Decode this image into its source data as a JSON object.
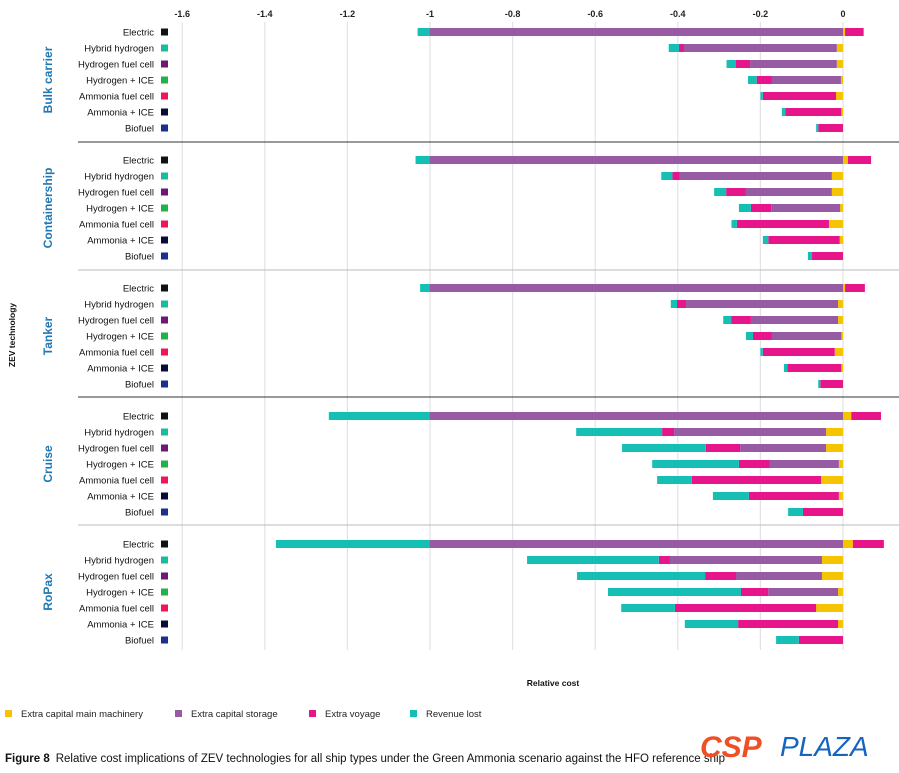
{
  "chart_data": {
    "type": "bar",
    "orientation": "horizontal",
    "stacked": true,
    "xlabel": "Relative cost",
    "ylabel": "ZEV technology",
    "xlim": [
      -1.65,
      0.1
    ],
    "xticks": [
      -1.6,
      -1.4,
      -1.2,
      -1,
      -0.8,
      -0.6,
      -0.4,
      -0.2,
      0
    ],
    "grid": "vertical",
    "legend_position": "bottom",
    "technologies": [
      {
        "name": "Electric",
        "color": "#111111"
      },
      {
        "name": "Hybrid hydrogen",
        "color": "#1abc9c"
      },
      {
        "name": "Hydrogen fuel cell",
        "color": "#6a1b7a"
      },
      {
        "name": "Hydrogen + ICE",
        "color": "#22b14c"
      },
      {
        "name": "Ammonia fuel cell",
        "color": "#f0145a"
      },
      {
        "name": "Ammonia + ICE",
        "color": "#0b0b3b"
      },
      {
        "name": "Biofuel",
        "color": "#1a2f8f"
      }
    ],
    "series": [
      {
        "name": "Extra capital main machinery",
        "key": "machinery",
        "color": "#f5c400"
      },
      {
        "name": "Extra capital storage",
        "key": "storage",
        "color": "#975ba3"
      },
      {
        "name": "Extra voyage",
        "key": "voyage",
        "color": "#e6168a"
      },
      {
        "name": "Revenue lost",
        "key": "revenue",
        "color": "#16bfb4"
      }
    ],
    "groups": [
      {
        "name": "Bulk carrier",
        "values": [
          [
            0.005,
            -1.0,
            0.045,
            -0.03
          ],
          [
            -0.015,
            -0.37,
            -0.012,
            -0.025
          ],
          [
            -0.015,
            -0.21,
            -0.035,
            -0.022
          ],
          [
            -0.005,
            -0.167,
            -0.037,
            -0.021
          ],
          [
            -0.017,
            0,
            -0.177,
            -0.006
          ],
          [
            -0.004,
            0,
            -0.136,
            -0.008
          ],
          [
            0,
            0,
            -0.06,
            -0.005
          ]
        ]
      },
      {
        "name": "Containership",
        "values": [
          [
            0.012,
            -1.0,
            0.056,
            -0.035
          ],
          [
            -0.027,
            -0.368,
            -0.018,
            -0.027
          ],
          [
            -0.027,
            -0.208,
            -0.048,
            -0.029
          ],
          [
            -0.007,
            -0.167,
            -0.049,
            -0.029
          ],
          [
            -0.034,
            0,
            -0.223,
            -0.013
          ],
          [
            -0.008,
            0,
            -0.173,
            -0.013
          ],
          [
            0,
            0,
            -0.075,
            -0.01
          ]
        ]
      },
      {
        "name": "Tanker",
        "values": [
          [
            0.005,
            -1.0,
            0.048,
            -0.024
          ],
          [
            -0.012,
            -0.368,
            -0.022,
            -0.015
          ],
          [
            -0.012,
            -0.211,
            -0.047,
            -0.02
          ],
          [
            -0.004,
            -0.168,
            -0.046,
            -0.017
          ],
          [
            -0.02,
            0,
            -0.174,
            -0.006
          ],
          [
            -0.004,
            0,
            -0.131,
            -0.008
          ],
          [
            0,
            0,
            -0.055,
            -0.005
          ]
        ]
      },
      {
        "name": "Cruise",
        "values": [
          [
            0.02,
            -1.0,
            0.072,
            -0.245
          ],
          [
            -0.041,
            -0.368,
            -0.029,
            -0.208
          ],
          [
            -0.041,
            -0.208,
            -0.083,
            -0.203
          ],
          [
            -0.01,
            -0.167,
            -0.075,
            -0.21
          ],
          [
            -0.053,
            0,
            -0.313,
            -0.084
          ],
          [
            -0.01,
            0,
            -0.218,
            -0.087
          ],
          [
            0,
            0,
            -0.097,
            -0.036
          ]
        ]
      },
      {
        "name": "RoPax",
        "values": [
          [
            0.024,
            -1.0,
            0.075,
            -0.373
          ],
          [
            -0.051,
            -0.368,
            -0.027,
            -0.319
          ],
          [
            -0.051,
            -0.208,
            -0.075,
            -0.31
          ],
          [
            -0.012,
            -0.169,
            -0.066,
            -0.322
          ],
          [
            -0.065,
            0,
            -0.342,
            -0.13
          ],
          [
            -0.012,
            0,
            -0.242,
            -0.129
          ],
          [
            0,
            0,
            -0.107,
            -0.055
          ]
        ]
      }
    ]
  },
  "caption": {
    "label": "Figure 8",
    "text": "Relative cost implications of ZEV technologies for all ship types under the Green Ammonia scenario against the HFO reference ship"
  },
  "watermark": {
    "part1": "CSP",
    "part2": "PLAZA"
  }
}
